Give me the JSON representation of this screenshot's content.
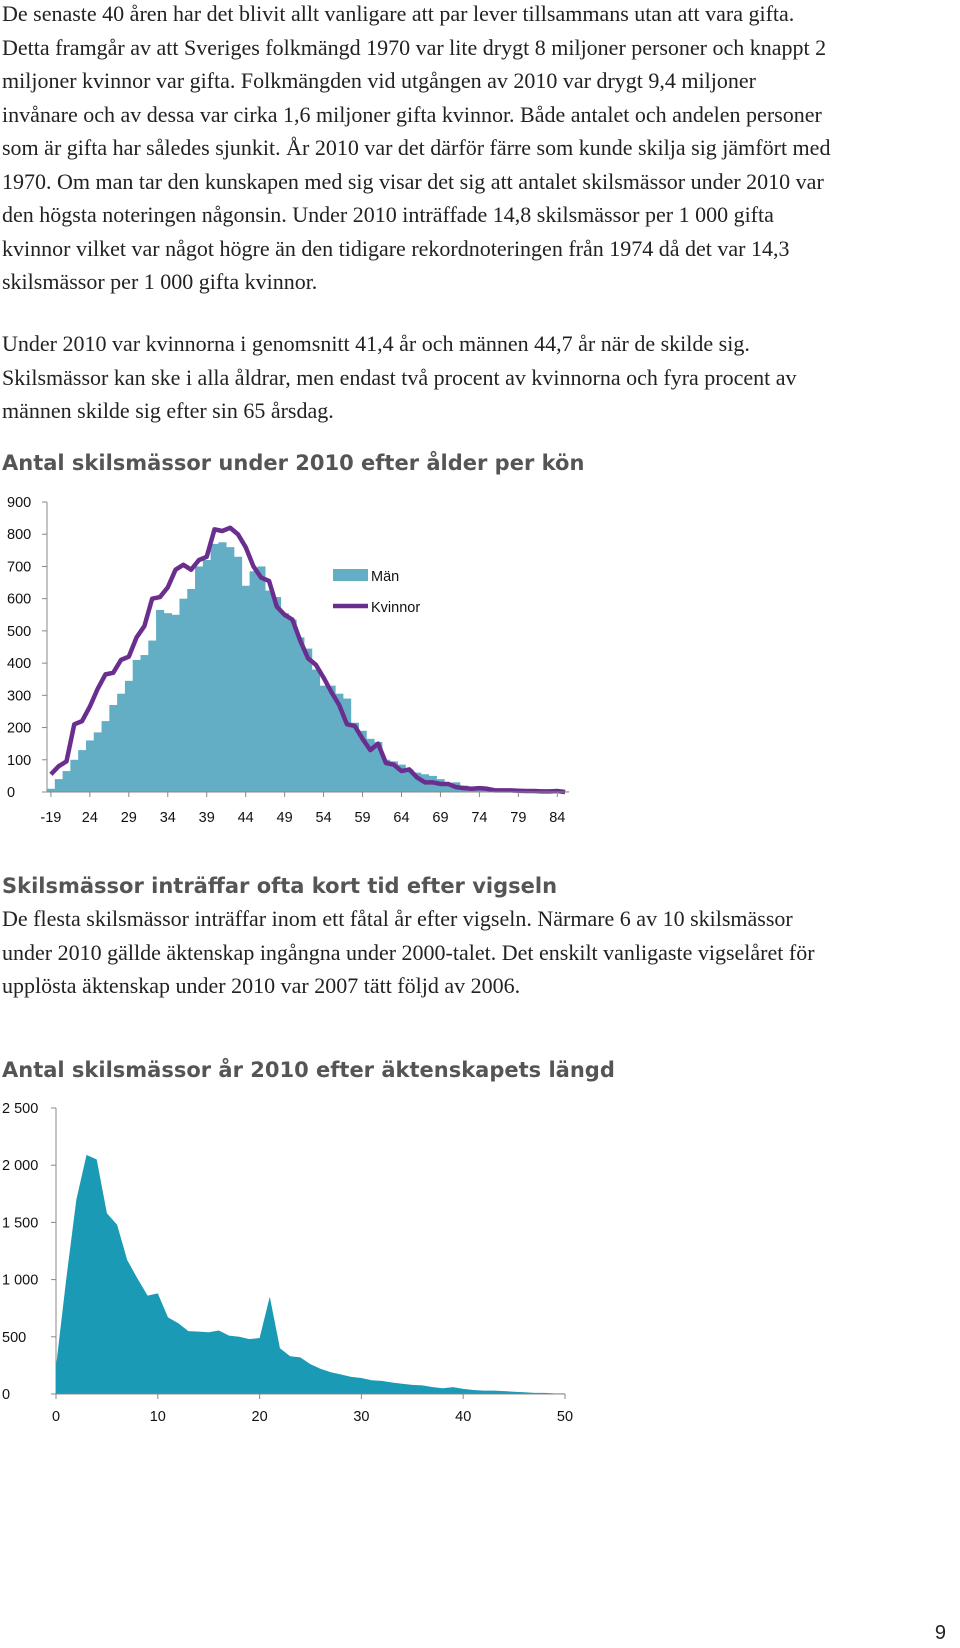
{
  "paragraphs": {
    "p1": "De senaste 40 åren har det blivit allt vanligare att par lever tillsammans utan att vara gifta. Detta framgår av att Sveriges folkmängd 1970 var lite drygt 8 miljoner personer och knappt 2 miljoner kvinnor var gifta. Folkmängden vid utgången av 2010 var drygt 9,4 miljoner invånare och av dessa var cirka 1,6 miljoner gifta kvinnor. Både antalet och andelen personer som är gifta har således sjunkit. År 2010 var det därför färre som kunde skilja sig jämfört med 1970. Om man tar den kunskapen med sig visar det sig att antalet skilsmässor under 2010 var den högsta noteringen någonsin. Under 2010 inträffade 14,8 skilsmässor per 1 000 gifta kvinnor vilket var något högre än den tidigare rekordnoteringen från 1974 då det var 14,3 skilsmässor per 1 000 gifta kvinnor.",
    "p2": "Under 2010 var kvinnorna i genomsnitt 41,4 år och männen 44,7 år när de skilde sig. Skilsmässor kan ske i alla åldrar, men endast två procent av kvinnorna och fyra procent av männen skilde sig efter sin 65 årsdag.",
    "p3": "De flesta skilsmässor inträffar inom ett fåtal år efter vigseln. Närmare 6 av 10 skilsmässor under 2010 gällde äktenskap ingångna under 2000-talet. Det enskilt vanligaste vigselåret för upplösta äktenskap under 2010 var 2007 tätt följd av 2006."
  },
  "section_heading": "Skilsmässor inträffar ofta kort tid efter vigseln",
  "page_number": "9",
  "chart_data": [
    {
      "type": "bar",
      "title": "Antal skilsmässor under 2010 efter ålder per kön",
      "xlabel": "",
      "ylabel": "",
      "ylim": [
        0,
        900
      ],
      "yticks": [
        "900",
        "800",
        "700",
        "600",
        "500",
        "400",
        "300",
        "200",
        "100",
        "0"
      ],
      "xtick_labels": [
        "-19",
        "24",
        "29",
        "34",
        "39",
        "44",
        "49",
        "54",
        "59",
        "64",
        "69",
        "74",
        "79",
        "84"
      ],
      "legend_position": "right",
      "grid": false,
      "x": [
        19,
        20,
        21,
        22,
        23,
        24,
        25,
        26,
        27,
        28,
        29,
        30,
        31,
        32,
        33,
        34,
        35,
        36,
        37,
        38,
        39,
        40,
        41,
        42,
        43,
        44,
        45,
        46,
        47,
        48,
        49,
        50,
        51,
        52,
        53,
        54,
        55,
        56,
        57,
        58,
        59,
        60,
        61,
        62,
        63,
        64,
        65,
        66,
        67,
        68,
        69,
        70,
        71,
        72,
        73,
        74,
        75,
        76,
        77,
        78,
        79,
        80,
        81,
        82,
        83,
        84,
        85
      ],
      "series": [
        {
          "name": "Män",
          "style": "bar",
          "color": "#63aec4",
          "values": [
            10,
            40,
            65,
            100,
            130,
            160,
            185,
            220,
            270,
            305,
            345,
            410,
            425,
            470,
            565,
            555,
            550,
            600,
            630,
            700,
            720,
            770,
            775,
            760,
            730,
            640,
            685,
            700,
            625,
            605,
            555,
            535,
            480,
            445,
            380,
            330,
            330,
            305,
            290,
            215,
            190,
            165,
            155,
            100,
            95,
            85,
            70,
            60,
            55,
            50,
            40,
            25,
            30,
            20,
            15,
            10,
            10,
            10,
            5,
            5,
            3,
            3,
            2,
            2,
            2,
            2,
            2
          ]
        },
        {
          "name": "Kvinnor",
          "style": "line",
          "color": "#6a2e8e",
          "values": [
            55,
            80,
            95,
            210,
            220,
            265,
            320,
            365,
            370,
            410,
            420,
            480,
            515,
            600,
            605,
            635,
            690,
            705,
            690,
            720,
            730,
            815,
            810,
            820,
            800,
            760,
            700,
            665,
            655,
            575,
            550,
            535,
            470,
            415,
            395,
            355,
            310,
            270,
            210,
            205,
            165,
            130,
            150,
            90,
            85,
            65,
            70,
            45,
            30,
            30,
            25,
            25,
            15,
            12,
            10,
            12,
            10,
            5,
            5,
            5,
            4,
            3,
            3,
            2,
            2,
            3,
            0
          ]
        }
      ]
    },
    {
      "type": "area",
      "title": "Antal skilsmässor år 2010 efter äktenskapets längd",
      "xlabel": "",
      "ylabel": "",
      "xlim": [
        0,
        50
      ],
      "ylim": [
        0,
        2500
      ],
      "yticks": [
        "2 500",
        "2 000",
        "1 500",
        "1 000",
        "500",
        "0"
      ],
      "xtick_labels": [
        "0",
        "10",
        "20",
        "30",
        "40",
        "50"
      ],
      "grid": false,
      "color": "#1a9ab4",
      "x": [
        0,
        1,
        2,
        3,
        4,
        5,
        6,
        7,
        8,
        9,
        10,
        11,
        12,
        13,
        14,
        15,
        16,
        17,
        18,
        19,
        20,
        21,
        22,
        23,
        24,
        25,
        26,
        27,
        28,
        29,
        30,
        31,
        32,
        33,
        34,
        35,
        36,
        37,
        38,
        39,
        40,
        41,
        42,
        43,
        44,
        45,
        46,
        47,
        48,
        49,
        50
      ],
      "values": [
        240,
        1000,
        1700,
        2090,
        2050,
        1580,
        1480,
        1170,
        1010,
        860,
        880,
        670,
        620,
        550,
        545,
        540,
        555,
        510,
        500,
        480,
        490,
        850,
        400,
        330,
        320,
        260,
        220,
        190,
        170,
        150,
        140,
        120,
        115,
        100,
        90,
        80,
        75,
        60,
        50,
        60,
        45,
        35,
        30,
        30,
        25,
        20,
        15,
        10,
        10,
        5,
        5
      ]
    }
  ]
}
